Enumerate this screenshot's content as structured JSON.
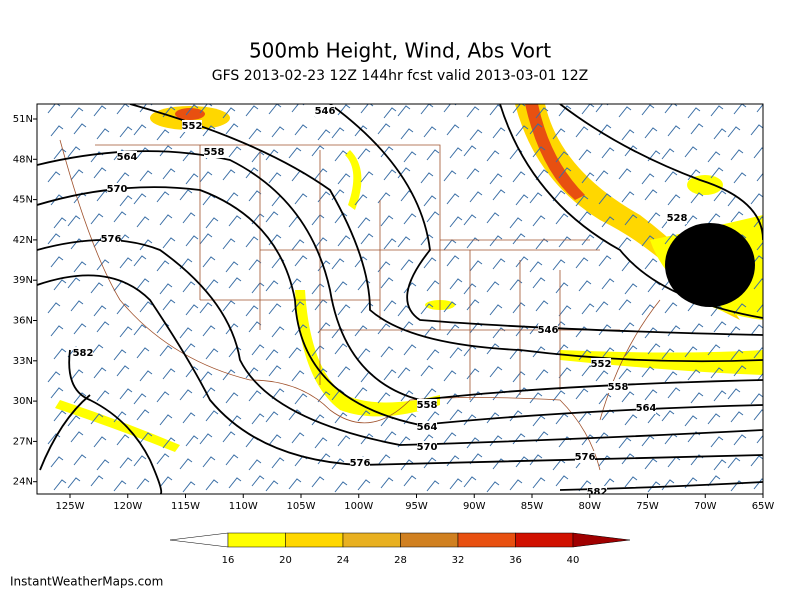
{
  "header": {
    "title": "500mb Height, Wind, Abs Vort",
    "subtitle": "GFS 2013-02-23 12Z 144hr fcst valid 2013-03-01 12Z"
  },
  "map": {
    "lat_labels": [
      "51N",
      "48N",
      "45N",
      "42N",
      "39N",
      "36N",
      "33N",
      "30N",
      "27N",
      "24N"
    ],
    "lon_labels": [
      "125W",
      "120W",
      "115W",
      "110W",
      "105W",
      "100W",
      "95W",
      "90W",
      "85W",
      "80W",
      "75W",
      "70W",
      "65W"
    ],
    "contour_labels": [
      "546",
      "552",
      "558",
      "564",
      "570",
      "576",
      "582",
      "528",
      "546",
      "552",
      "558",
      "564",
      "558",
      "564",
      "570",
      "576",
      "576",
      "582"
    ]
  },
  "colorbar": {
    "labels": [
      "16",
      "20",
      "24",
      "28",
      "32",
      "36",
      "40"
    ],
    "colors": [
      "#ffffff",
      "#ffff00",
      "#ffd700",
      "#e8b020",
      "#d08020",
      "#e85010",
      "#d01000",
      "#a00000"
    ]
  },
  "footer": "InstantWeatherMaps.com"
}
